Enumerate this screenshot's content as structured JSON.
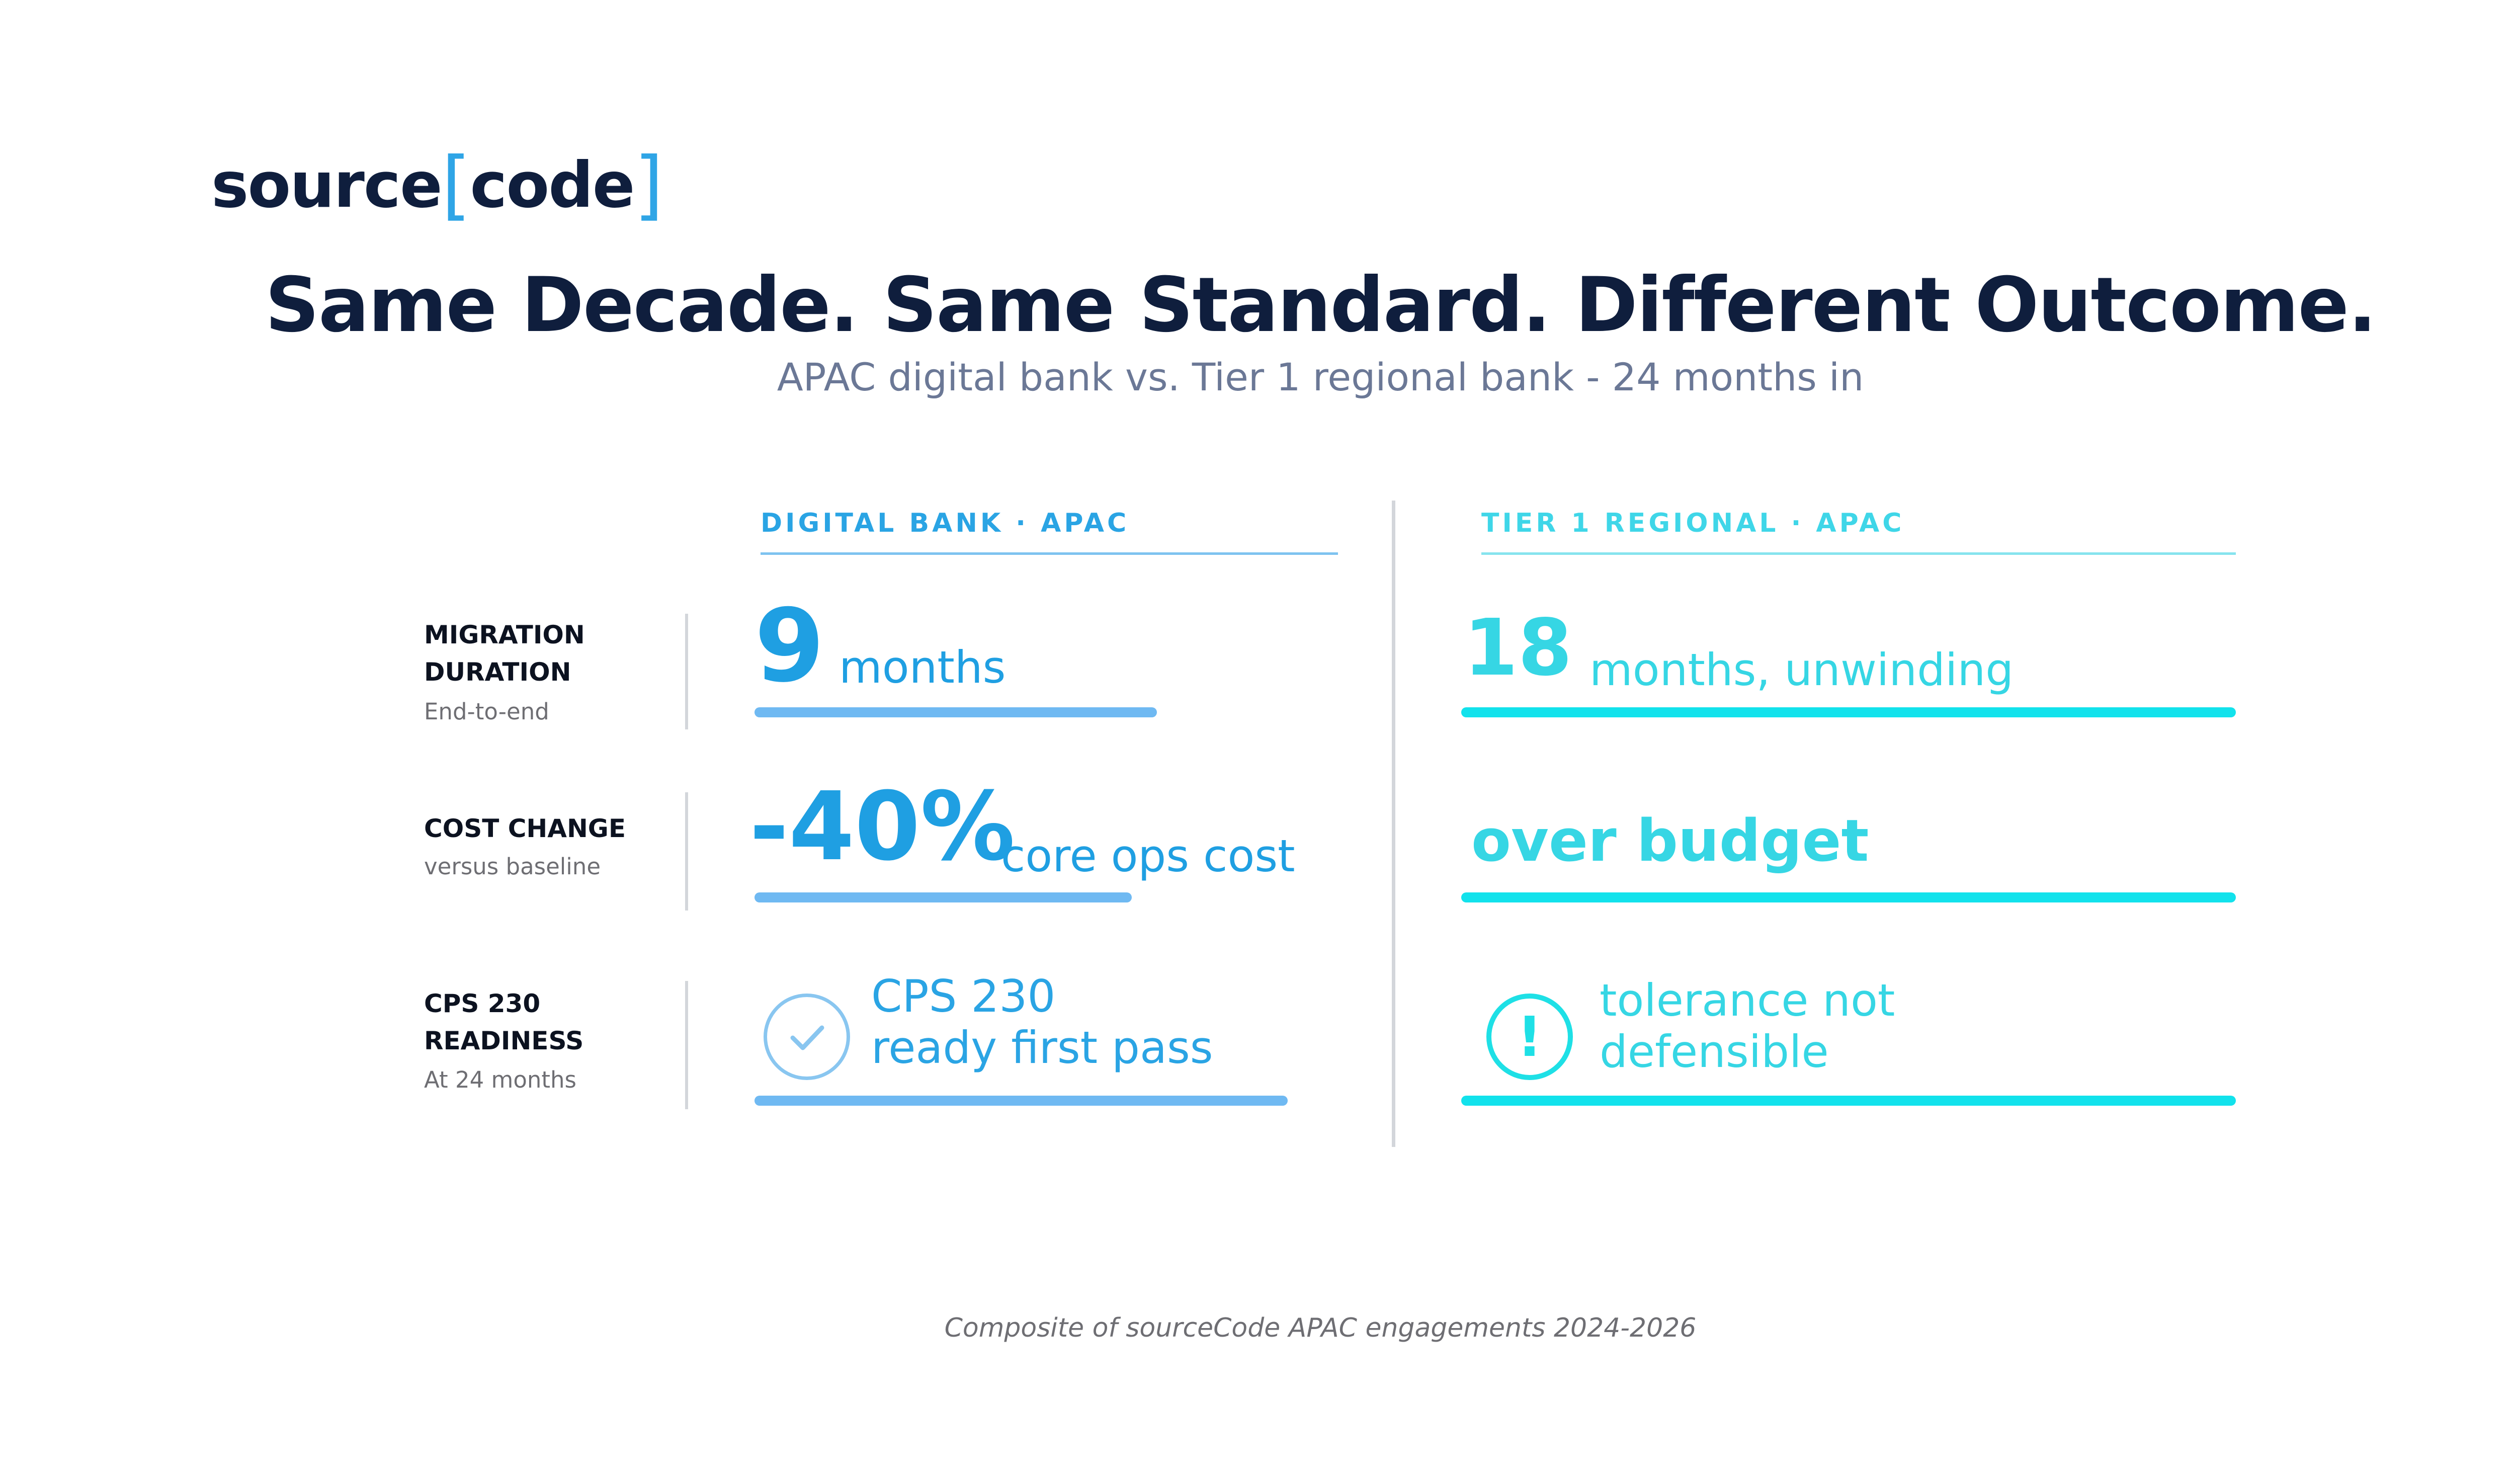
{
  "logo": {
    "word1": "source",
    "open_bracket": "[",
    "word2": "code",
    "close_bracket": "]"
  },
  "title": "Same Decade. Same Standard. Different Outcome.",
  "subtitle": "APAC digital bank vs. Tier 1 regional bank - 24 months in",
  "columns": {
    "digital": {
      "header": "DIGITAL BANK · APAC"
    },
    "tier1": {
      "header": "TIER 1 REGIONAL · APAC"
    }
  },
  "rows": [
    {
      "label_line1": "MIGRATION",
      "label_line2": "DURATION",
      "sublabel": "End-to-end",
      "digital": {
        "value": "9",
        "text": "months"
      },
      "tier1": {
        "value": "18",
        "text": "months, unwinding"
      }
    },
    {
      "label_line1": "COST CHANGE",
      "sublabel": "versus baseline",
      "digital": {
        "value": "-40%",
        "text": "core ops cost"
      },
      "tier1": {
        "value": "over budget"
      }
    },
    {
      "label_line1": "CPS 230",
      "label_line2": "READINESS",
      "sublabel": "At 24 months",
      "digital": {
        "line1": "CPS 230",
        "line2": "ready first pass",
        "icon": "check-icon"
      },
      "tier1": {
        "line1": "tolerance not",
        "line2": "defensible",
        "icon": "warning-icon"
      }
    }
  ],
  "colors": {
    "navy": "#0f1e3d",
    "digital_accent": "#1f9fe2",
    "tier1_accent": "#36d6e4",
    "digital_bar": "#6fb9f2",
    "tier1_bar": "#12e2ec"
  },
  "footnote": "Composite of sourceCode APAC engagements 2024-2026"
}
